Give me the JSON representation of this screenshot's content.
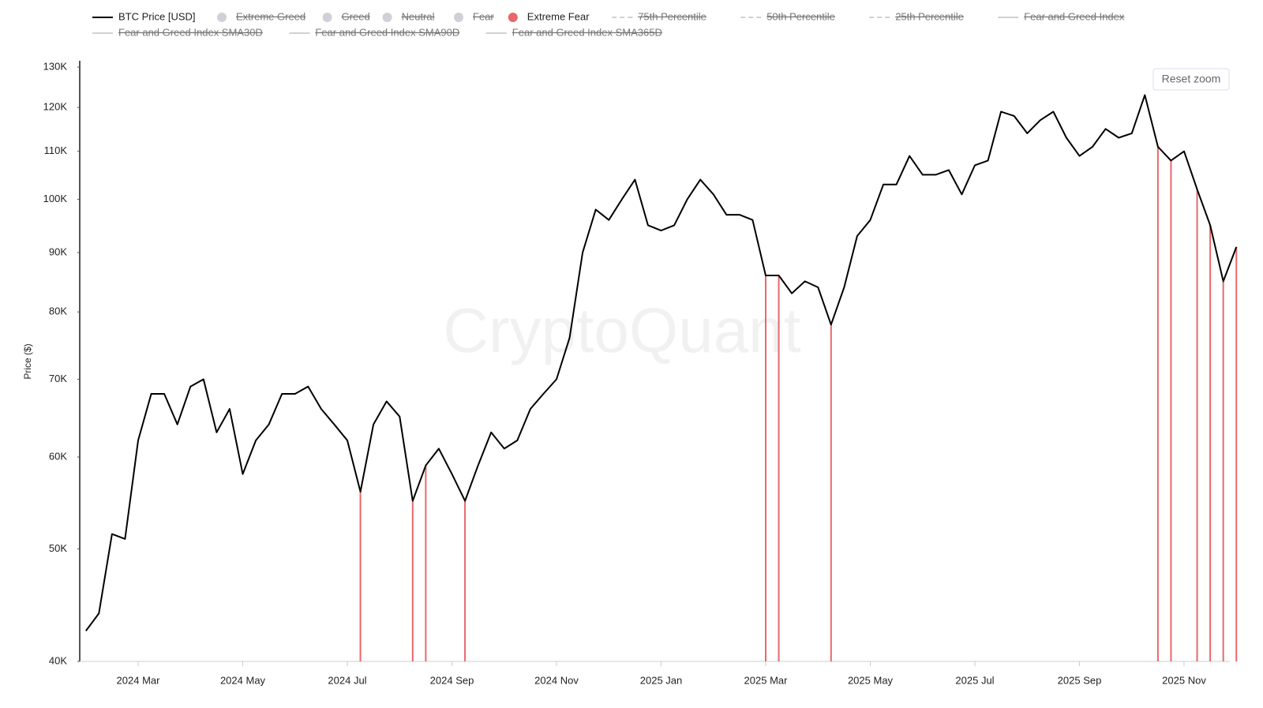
{
  "chart_data": {
    "type": "line",
    "y_label": "Price ($)",
    "log_scale": true,
    "watermark": "CryptoQuant",
    "button": "Reset zoom",
    "categories": [
      null,
      null,
      null,
      null,
      "2024 Mar",
      null,
      null,
      null,
      null,
      null,
      null,
      null,
      "2024 May",
      null,
      null,
      null,
      null,
      null,
      null,
      null,
      "2024 Jul",
      null,
      null,
      null,
      null,
      null,
      null,
      null,
      "2024 Sep",
      null,
      null,
      null,
      null,
      null,
      null,
      null,
      "2024 Nov",
      null,
      null,
      null,
      null,
      null,
      null,
      null,
      "2025 Jan",
      null,
      null,
      null,
      null,
      null,
      null,
      null,
      "2025 Mar",
      null,
      null,
      null,
      null,
      null,
      null,
      null,
      "2025 May",
      null,
      null,
      null,
      null,
      null,
      null,
      null,
      "2025 Jul",
      null,
      null,
      null,
      null,
      null,
      null,
      null,
      "2025 Sep",
      null,
      null,
      null,
      null,
      null,
      null,
      null,
      "2025 Nov",
      null,
      null,
      null,
      null
    ],
    "series": [
      {
        "name": "BTC Price [USD]",
        "color": "#000000",
        "kind": "line",
        "values": [
          42500,
          44000,
          51500,
          51000,
          62000,
          68000,
          68000,
          64000,
          69000,
          70000,
          63000,
          66000,
          58000,
          62000,
          64000,
          68000,
          68000,
          69000,
          66000,
          64000,
          62000,
          56000,
          64000,
          67000,
          65000,
          55000,
          59000,
          61000,
          58000,
          55000,
          59000,
          63000,
          61000,
          62000,
          66000,
          68000,
          70000,
          76000,
          90000,
          98000,
          96000,
          100000,
          104000,
          95000,
          94000,
          95000,
          100000,
          104000,
          101000,
          97000,
          97000,
          96000,
          86000,
          86000,
          83000,
          85000,
          84000,
          78000,
          84000,
          93000,
          96000,
          103000,
          103000,
          109000,
          105000,
          105000,
          106000,
          101000,
          107000,
          108000,
          119000,
          118000,
          114000,
          117000,
          119000,
          113000,
          109000,
          111000,
          115000,
          113000,
          114000,
          123000,
          111000,
          108000,
          110000,
          102000,
          95000,
          85000,
          91000
        ]
      },
      {
        "name": "Extreme Fear",
        "color": "#e8686b",
        "kind": "bar",
        "values": [
          null,
          null,
          null,
          null,
          null,
          null,
          null,
          null,
          null,
          null,
          null,
          null,
          null,
          null,
          null,
          null,
          null,
          null,
          null,
          null,
          null,
          56000,
          null,
          null,
          null,
          55000,
          59000,
          null,
          null,
          55000,
          null,
          null,
          null,
          null,
          null,
          null,
          null,
          null,
          null,
          null,
          null,
          null,
          null,
          null,
          null,
          null,
          null,
          null,
          null,
          null,
          null,
          null,
          86000,
          86000,
          null,
          null,
          null,
          78000,
          null,
          null,
          null,
          null,
          null,
          null,
          null,
          null,
          null,
          null,
          null,
          null,
          null,
          null,
          null,
          null,
          null,
          null,
          null,
          null,
          null,
          null,
          null,
          null,
          111000,
          108000,
          null,
          102000,
          95000,
          85000,
          91000
        ]
      }
    ],
    "hidden_legend": [
      {
        "name": "Extreme Greed",
        "marker": "dot"
      },
      {
        "name": "Greed",
        "marker": "dot"
      },
      {
        "name": "Neutral",
        "marker": "dot"
      },
      {
        "name": "Fear",
        "marker": "dot"
      },
      {
        "name": "75th Percentile",
        "marker": "dashed"
      },
      {
        "name": "50th Percentile",
        "marker": "dashed"
      },
      {
        "name": "25th Percentile",
        "marker": "dashed"
      },
      {
        "name": "Fear and Greed Index",
        "marker": "line"
      },
      {
        "name": "Fear and Greed Index SMA30D",
        "marker": "line"
      },
      {
        "name": "Fear and Greed Index SMA90D",
        "marker": "line"
      },
      {
        "name": "Fear and Greed Index SMA365D",
        "marker": "line"
      }
    ],
    "ylim": [
      40000,
      130000
    ],
    "yticks": [
      {
        "value": 40000,
        "label": "40K"
      },
      {
        "value": 50000,
        "label": "50K"
      },
      {
        "value": 60000,
        "label": "60K"
      },
      {
        "value": 70000,
        "label": "70K"
      },
      {
        "value": 80000,
        "label": "80K"
      },
      {
        "value": 90000,
        "label": "90K"
      },
      {
        "value": 100000,
        "label": "100K"
      },
      {
        "value": 110000,
        "label": "110K"
      },
      {
        "value": 120000,
        "label": "120K"
      },
      {
        "value": 130000,
        "label": "130K"
      }
    ]
  }
}
